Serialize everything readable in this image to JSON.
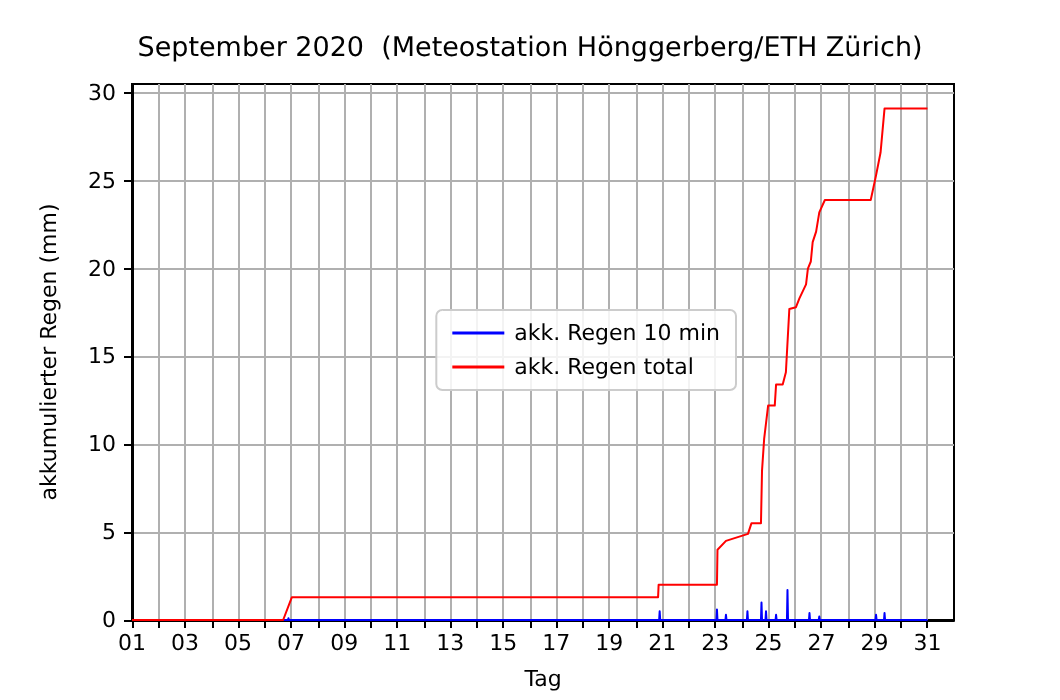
{
  "chart_data": {
    "type": "line",
    "title": "September 2020  (Meteostation Hönggerberg/ETH Zürich)",
    "xlabel": "Tag",
    "ylabel": "akkumulierter Regen (mm)",
    "xlim": [
      1,
      32
    ],
    "ylim": [
      0,
      30.5
    ],
    "xticks": [
      {
        "value": 1,
        "label": "01"
      },
      {
        "value": 2,
        "label": null
      },
      {
        "value": 3,
        "label": "03"
      },
      {
        "value": 4,
        "label": null
      },
      {
        "value": 5,
        "label": "05"
      },
      {
        "value": 6,
        "label": null
      },
      {
        "value": 7,
        "label": "07"
      },
      {
        "value": 8,
        "label": null
      },
      {
        "value": 9,
        "label": "09"
      },
      {
        "value": 10,
        "label": null
      },
      {
        "value": 11,
        "label": "11"
      },
      {
        "value": 12,
        "label": null
      },
      {
        "value": 13,
        "label": "13"
      },
      {
        "value": 14,
        "label": null
      },
      {
        "value": 15,
        "label": "15"
      },
      {
        "value": 16,
        "label": null
      },
      {
        "value": 17,
        "label": "17"
      },
      {
        "value": 18,
        "label": null
      },
      {
        "value": 19,
        "label": "19"
      },
      {
        "value": 20,
        "label": null
      },
      {
        "value": 21,
        "label": "21"
      },
      {
        "value": 22,
        "label": null
      },
      {
        "value": 23,
        "label": "23"
      },
      {
        "value": 24,
        "label": null
      },
      {
        "value": 25,
        "label": "25"
      },
      {
        "value": 26,
        "label": null
      },
      {
        "value": 27,
        "label": "27"
      },
      {
        "value": 28,
        "label": null
      },
      {
        "value": 29,
        "label": "29"
      },
      {
        "value": 30,
        "label": null
      },
      {
        "value": 31,
        "label": "31"
      }
    ],
    "yticks": [
      0,
      5,
      10,
      15,
      20,
      25,
      30
    ],
    "grid": true,
    "legend": "center",
    "marker": "none",
    "line_style": "solid",
    "series": [
      {
        "name": "akk. Regen 10 min",
        "color": "#0000ff",
        "x": [
          1,
          6.88,
          6.9,
          6.92,
          20.88,
          20.9,
          20.92,
          23.04,
          23.06,
          23.08,
          23.38,
          23.4,
          23.42,
          24.19,
          24.21,
          24.23,
          24.72,
          24.74,
          24.76,
          24.89,
          24.91,
          24.93,
          25.27,
          25.29,
          25.31,
          25.7,
          25.72,
          25.74,
          26.53,
          26.55,
          26.57,
          26.9,
          26.92,
          26.94,
          29.04,
          29.06,
          29.08,
          29.36,
          29.38,
          29.4,
          31
        ],
        "values": [
          0,
          0,
          0.1,
          0,
          0,
          0.5,
          0,
          0,
          0.6,
          0,
          0,
          0.3,
          0,
          0,
          0.5,
          0,
          0,
          1.0,
          0,
          0,
          0.5,
          0,
          0,
          0.3,
          0,
          0,
          1.7,
          0,
          0,
          0.4,
          0,
          0,
          0.2,
          0,
          0,
          0.3,
          0,
          0,
          0.4,
          0,
          0
        ]
      },
      {
        "name": "akk. Regen total",
        "color": "#ff0000",
        "x": [
          1,
          6.7,
          7.03,
          20.84,
          20.86,
          23.06,
          23.08,
          23.4,
          24.23,
          24.36,
          24.72,
          24.76,
          24.84,
          24.99,
          25.24,
          25.29,
          25.54,
          25.66,
          25.79,
          26.04,
          26.17,
          26.42,
          26.49,
          26.6,
          26.67,
          26.8,
          26.92,
          27.13,
          28.86,
          29.06,
          29.23,
          29.38,
          31
        ],
        "values": [
          0,
          0,
          1.3,
          1.3,
          2.0,
          2.0,
          4.0,
          4.5,
          4.9,
          5.5,
          5.5,
          8.5,
          10.3,
          12.2,
          12.2,
          13.4,
          13.4,
          14.1,
          17.7,
          17.8,
          18.3,
          19.1,
          20.0,
          20.4,
          21.5,
          22.1,
          23.2,
          23.9,
          23.9,
          25.3,
          26.6,
          29.1,
          29.1
        ]
      }
    ]
  }
}
